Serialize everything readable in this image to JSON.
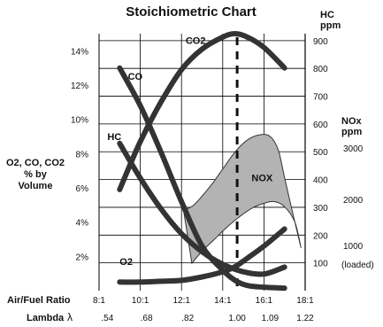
{
  "chart_data": {
    "type": "line",
    "title": "Stoichiometric  Chart",
    "x_axis": {
      "label": "Air/Fuel Ratio",
      "range": [
        8,
        18
      ],
      "ticks": [
        8,
        10,
        12,
        14,
        16,
        18
      ],
      "tick_labels": [
        "8:1",
        "10:1",
        "12:1",
        "14:1",
        "16:1",
        "18:1"
      ],
      "lambda_label": "Lambda",
      "lambda_symbol": "λ",
      "lambda_ticks": [
        ".54",
        ".68",
        ".82",
        "1.00",
        "1.09",
        "1.22"
      ]
    },
    "y_axis_left": {
      "label_lines": [
        "O2, CO, CO2",
        "% by",
        "Volume"
      ],
      "range": [
        0,
        15
      ],
      "ticks": [
        2,
        4,
        6,
        8,
        10,
        12,
        14
      ],
      "tick_labels": [
        "2%",
        "4%",
        "6%",
        "8%",
        "10%",
        "12%",
        "14%"
      ]
    },
    "y_axis_hc": {
      "label_lines": [
        "HC",
        "ppm"
      ],
      "range": [
        0,
        925
      ],
      "ticks": [
        100,
        200,
        300,
        400,
        500,
        600,
        700,
        800,
        900
      ],
      "tick_labels": [
        "100",
        "200",
        "300",
        "400",
        "500",
        "600",
        "700",
        "800",
        "900"
      ]
    },
    "y_axis_nox": {
      "label_lines": [
        "NOx",
        "ppm"
      ],
      "tick_labels": [
        "3000",
        "2000",
        "1000",
        "(loaded)"
      ]
    },
    "stoichiometric_line_x": 14.7,
    "grid": true,
    "series": [
      {
        "name": "CO2",
        "unit": "%",
        "points": [
          [
            9.0,
            5.9
          ],
          [
            10.0,
            8.7
          ],
          [
            11.0,
            11.0
          ],
          [
            12.0,
            12.9
          ],
          [
            13.0,
            14.1
          ],
          [
            14.0,
            14.8
          ],
          [
            14.6,
            15.0
          ],
          [
            15.2,
            14.8
          ],
          [
            16.0,
            14.2
          ],
          [
            17.0,
            13.0
          ]
        ]
      },
      {
        "name": "CO",
        "unit": "%",
        "points": [
          [
            9.0,
            13.0
          ],
          [
            10.0,
            10.8
          ],
          [
            11.0,
            8.1
          ],
          [
            12.0,
            5.2
          ],
          [
            13.0,
            2.6
          ],
          [
            14.0,
            1.2
          ],
          [
            14.6,
            0.6
          ],
          [
            15.2,
            0.3
          ],
          [
            16.0,
            0.2
          ],
          [
            17.0,
            0.15
          ]
        ]
      },
      {
        "name": "HC",
        "unit": "ppm",
        "points": [
          [
            9.0,
            530
          ],
          [
            10.0,
            405
          ],
          [
            11.0,
            295
          ],
          [
            12.0,
            205
          ],
          [
            13.0,
            140
          ],
          [
            14.0,
            95
          ],
          [
            15.0,
            68
          ],
          [
            16.0,
            60
          ],
          [
            17.0,
            85
          ]
        ]
      },
      {
        "name": "O2",
        "unit": "%",
        "points": [
          [
            9.0,
            0.5
          ],
          [
            10.0,
            0.5
          ],
          [
            11.0,
            0.55
          ],
          [
            12.0,
            0.6
          ],
          [
            13.0,
            0.8
          ],
          [
            14.0,
            1.1
          ],
          [
            14.6,
            1.4
          ],
          [
            15.2,
            1.9
          ],
          [
            16.0,
            2.6
          ],
          [
            17.0,
            3.6
          ]
        ]
      }
    ],
    "band": {
      "name": "NOX",
      "upper": [
        [
          12.1,
          4.7
        ],
        [
          12.6,
          5.0
        ],
        [
          13.4,
          6.1
        ],
        [
          14.0,
          7.1
        ],
        [
          14.6,
          8.1
        ],
        [
          15.2,
          8.8
        ],
        [
          15.8,
          9.1
        ],
        [
          16.3,
          9.0
        ],
        [
          16.7,
          8.2
        ],
        [
          17.0,
          6.6
        ],
        [
          17.5,
          4.0
        ],
        [
          17.8,
          2.5
        ]
      ],
      "lower": [
        [
          12.5,
          1.6
        ],
        [
          13.0,
          2.3
        ],
        [
          13.6,
          3.0
        ],
        [
          14.2,
          3.7
        ],
        [
          14.8,
          4.3
        ],
        [
          15.4,
          4.8
        ],
        [
          16.0,
          5.1
        ],
        [
          16.5,
          5.2
        ],
        [
          17.0,
          4.9
        ],
        [
          17.5,
          4.0
        ],
        [
          17.8,
          2.5
        ]
      ]
    },
    "labels": {
      "co2": {
        "text": "CO2",
        "x": 12.2,
        "y": 14.4
      },
      "co": {
        "text": "CO",
        "x": 9.4,
        "y": 12.3
      },
      "hc": {
        "text": "HC",
        "x": 8.4,
        "y": 8.8
      },
      "o2": {
        "text": "O2",
        "x": 9.0,
        "y": 1.5
      },
      "nox": {
        "text": "NOX",
        "x": 15.4,
        "y": 6.4
      }
    },
    "colors": {
      "curve": "#333333",
      "band_fill": "#b3b3b3",
      "band_stroke": "#333333",
      "grid": "#000000"
    }
  }
}
